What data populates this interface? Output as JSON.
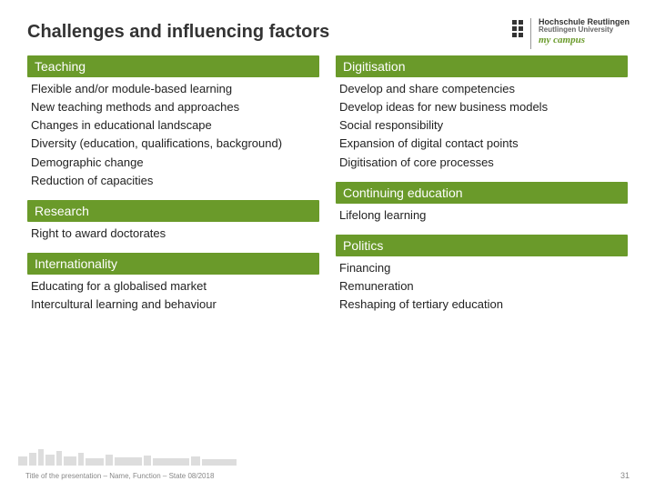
{
  "title": "Challenges and influencing factors",
  "logo": {
    "line1": "Hochschule Reutlingen",
    "line2": "Reutlingen University",
    "line3": "my campus"
  },
  "left_sections": [
    {
      "name": "teaching",
      "head": "Teaching",
      "items": [
        "Flexible and/or module-based learning",
        "New teaching methods and approaches",
        "Changes in educational landscape",
        "Diversity (education, qualifications, background)",
        "Demographic change",
        "Reduction of capacities"
      ]
    },
    {
      "name": "research",
      "head": "Research",
      "items": [
        "Right to award doctorates"
      ]
    },
    {
      "name": "internationality",
      "head": "Internationality",
      "items": [
        "Educating for a globalised market",
        "Intercultural learning and behaviour"
      ]
    }
  ],
  "right_sections": [
    {
      "name": "digitisation",
      "head": "Digitisation",
      "items": [
        "Develop and share competencies",
        "Develop ideas for new business models",
        "Social responsibility",
        "Expansion of digital contact points",
        "Digitisation of core processes"
      ]
    },
    {
      "name": "continuing-education",
      "head": "Continuing education",
      "items": [
        "Lifelong learning"
      ]
    },
    {
      "name": "politics",
      "head": "Politics",
      "items": [
        "Financing",
        "Remuneration",
        "Reshaping of tertiary education"
      ]
    }
  ],
  "footer_left": "Title of the presentation – Name, Function – State 08/2018",
  "page_number": "31",
  "colors": {
    "accent": "#6a9a2a",
    "text": "#222222",
    "muted": "#888888",
    "background": "#ffffff"
  }
}
